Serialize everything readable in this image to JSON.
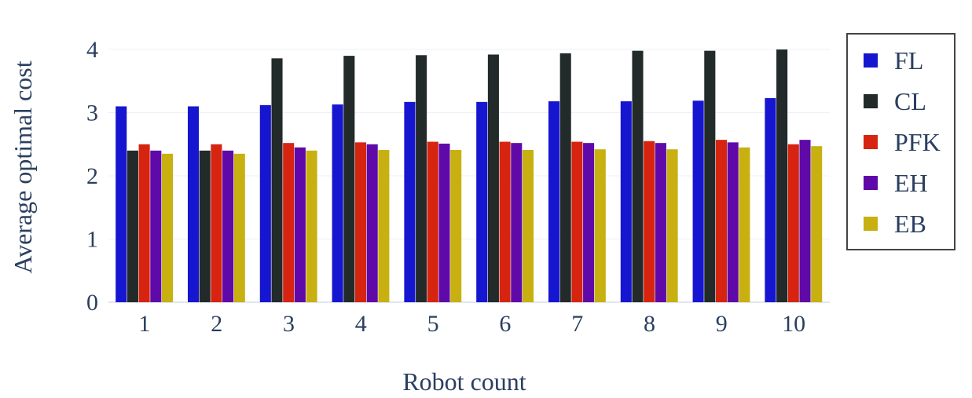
{
  "chart_data": {
    "type": "bar",
    "xlabel": "Robot count",
    "ylabel": "Average optimal cost",
    "categories": [
      "1",
      "2",
      "3",
      "4",
      "5",
      "6",
      "7",
      "8",
      "9",
      "10"
    ],
    "ylim": [
      0,
      4.1
    ],
    "yticks": [
      "0",
      "1",
      "2",
      "3",
      "4"
    ],
    "grid": true,
    "legend_position": "right",
    "series": [
      {
        "name": "FL",
        "color": "#1616d0",
        "values": [
          3.1,
          3.1,
          3.12,
          3.13,
          3.17,
          3.17,
          3.18,
          3.18,
          3.19,
          3.23
        ]
      },
      {
        "name": "CL",
        "color": "#222a2a",
        "values": [
          2.4,
          2.4,
          3.86,
          3.9,
          3.91,
          3.92,
          3.94,
          3.98,
          3.98,
          4.0
        ]
      },
      {
        "name": "PFK",
        "color": "#d62411",
        "values": [
          2.5,
          2.5,
          2.52,
          2.53,
          2.54,
          2.54,
          2.54,
          2.55,
          2.57,
          2.5
        ]
      },
      {
        "name": "EH",
        "color": "#5f0aa8",
        "values": [
          2.4,
          2.4,
          2.45,
          2.5,
          2.51,
          2.52,
          2.52,
          2.52,
          2.53,
          2.57
        ]
      },
      {
        "name": "EB",
        "color": "#c7b010",
        "values": [
          2.35,
          2.35,
          2.4,
          2.41,
          2.41,
          2.41,
          2.42,
          2.42,
          2.45,
          2.47
        ]
      }
    ]
  }
}
